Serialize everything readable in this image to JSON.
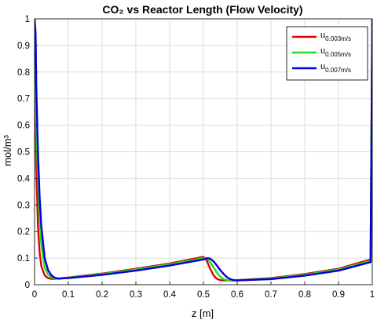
{
  "chart_data": {
    "type": "line",
    "title": "CO₂ vs Reactor Length (Flow Velocity)",
    "xlabel": "z [m]",
    "ylabel": "mol/m³",
    "xlim": [
      0,
      1
    ],
    "ylim": [
      0,
      1
    ],
    "x_ticks": [
      "0",
      "0.1",
      "0.2",
      "0.3",
      "0.4",
      "0.5",
      "0.6",
      "0.7",
      "0.8",
      "0.9",
      "1"
    ],
    "y_ticks": [
      "0",
      "0.1",
      "0.2",
      "0.3",
      "0.4",
      "0.5",
      "0.6",
      "0.7",
      "0.8",
      "0.9",
      "1"
    ],
    "grid": true,
    "legend_position": "top-right",
    "series": [
      {
        "name": "u0.003m/s",
        "legend_base": "u",
        "legend_sub": "0.003m/s",
        "color": "#e00000",
        "x": [
          0,
          0.005,
          0.01,
          0.015,
          0.02,
          0.03,
          0.04,
          0.05,
          0.06,
          0.1,
          0.2,
          0.3,
          0.4,
          0.5,
          0.51,
          0.52,
          0.53,
          0.54,
          0.55,
          0.56,
          0.58,
          0.6,
          0.7,
          0.8,
          0.9,
          0.995,
          1.0
        ],
        "y": [
          1.0,
          0.45,
          0.22,
          0.12,
          0.07,
          0.035,
          0.025,
          0.022,
          0.022,
          0.027,
          0.042,
          0.06,
          0.08,
          0.105,
          0.09,
          0.06,
          0.035,
          0.022,
          0.017,
          0.016,
          0.016,
          0.017,
          0.025,
          0.04,
          0.06,
          0.095,
          1.0
        ]
      },
      {
        "name": "u0.005m/s",
        "legend_base": "u",
        "legend_sub": "0.005m/s",
        "color": "#22dd22",
        "x": [
          0,
          0.005,
          0.01,
          0.015,
          0.02,
          0.03,
          0.04,
          0.05,
          0.06,
          0.07,
          0.1,
          0.2,
          0.3,
          0.4,
          0.5,
          0.51,
          0.52,
          0.53,
          0.54,
          0.55,
          0.56,
          0.57,
          0.58,
          0.6,
          0.7,
          0.8,
          0.9,
          0.995,
          1.0
        ],
        "y": [
          1.0,
          0.62,
          0.4,
          0.25,
          0.15,
          0.065,
          0.038,
          0.027,
          0.023,
          0.022,
          0.026,
          0.04,
          0.057,
          0.077,
          0.1,
          0.098,
          0.085,
          0.065,
          0.045,
          0.03,
          0.021,
          0.017,
          0.016,
          0.016,
          0.023,
          0.037,
          0.057,
          0.09,
          1.0
        ]
      },
      {
        "name": "u0.007m/s",
        "legend_base": "u",
        "legend_sub": "0.007m/s",
        "color": "#0000dd",
        "x": [
          0,
          0.003,
          0.005,
          0.01,
          0.015,
          0.02,
          0.03,
          0.04,
          0.05,
          0.06,
          0.07,
          0.1,
          0.2,
          0.3,
          0.4,
          0.5,
          0.51,
          0.52,
          0.53,
          0.54,
          0.55,
          0.56,
          0.57,
          0.58,
          0.59,
          0.6,
          0.7,
          0.8,
          0.9,
          0.995,
          1.0
        ],
        "y": [
          1.0,
          0.95,
          0.75,
          0.5,
          0.33,
          0.22,
          0.1,
          0.055,
          0.035,
          0.026,
          0.023,
          0.025,
          0.037,
          0.053,
          0.072,
          0.095,
          0.1,
          0.098,
          0.088,
          0.072,
          0.055,
          0.04,
          0.028,
          0.021,
          0.017,
          0.016,
          0.021,
          0.034,
          0.053,
          0.085,
          1.0
        ]
      }
    ]
  }
}
